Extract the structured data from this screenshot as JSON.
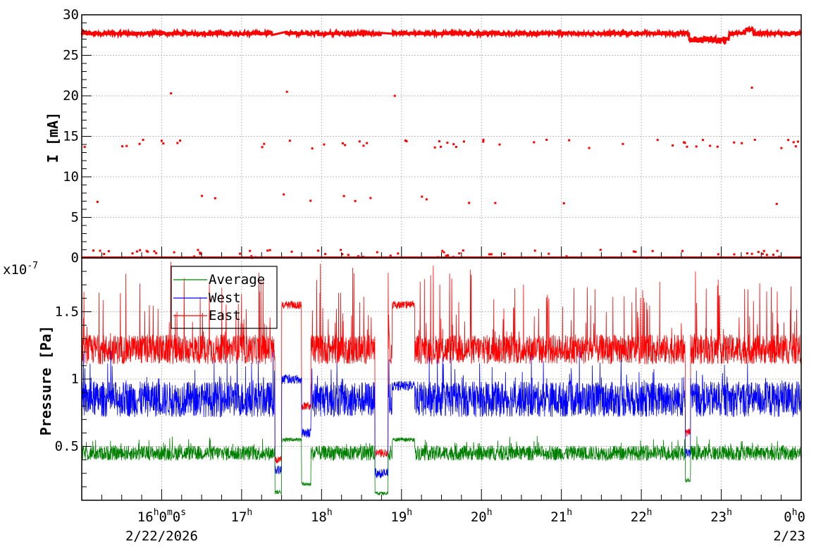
{
  "chart_data": [
    {
      "type": "scatter",
      "ylabel": "I [mA]",
      "ylim": [
        0,
        30
      ],
      "yticks": [
        0,
        5,
        10,
        15,
        20,
        25,
        30
      ],
      "ytick_labels": [
        "0",
        "5",
        "10",
        "15",
        "20",
        "25",
        "30"
      ],
      "grid": true,
      "x_range_hours": [
        "2026-02-22 15:00",
        "2026-02-23 00:00"
      ],
      "series": [
        {
          "color": "#ff0000",
          "main_level_mA": 27.7,
          "dropout_levels_mA": [
            14,
            0.5
          ],
          "gaps": [
            [
              "17:23",
              "17:33"
            ],
            [
              "18:45",
              "18:53"
            ]
          ],
          "notes": [
            {
              "time": "18:55",
              "value": 20
            },
            {
              "time": "23:23",
              "value": 21
            },
            {
              "time": "16:07",
              "value": 20.3
            },
            {
              "time": "17:34",
              "value": 20.5
            }
          ]
        }
      ]
    },
    {
      "type": "line",
      "ylabel": "Pressure [Pa]",
      "yscale_label": "x10",
      "yscale_exponent": "-7",
      "ylim": [
        0.1,
        1.9
      ],
      "yticks": [
        0.5,
        1.0,
        1.5
      ],
      "ytick_labels": [
        "0.5",
        "1",
        "1.5"
      ],
      "grid": true,
      "legend_position": "top-left",
      "xtick_labels": [
        {
          "main": "16",
          "sup": "h",
          "rest": "0",
          "rest_sup": "m",
          "rest2": "0",
          "rest2_sup": "s"
        },
        {
          "main": "17",
          "sup": "h"
        },
        {
          "main": "18",
          "sup": "h"
        },
        {
          "main": "19",
          "sup": "h"
        },
        {
          "main": "20",
          "sup": "h"
        },
        {
          "main": "21",
          "sup": "h"
        },
        {
          "main": "22",
          "sup": "h"
        },
        {
          "main": "23",
          "sup": "h"
        },
        {
          "main": "0",
          "sup": "h",
          "rest": "0"
        }
      ],
      "date_labels": [
        "2/22/2026",
        "2/23"
      ],
      "series": [
        {
          "name": "Average",
          "color": "#008000",
          "baseline": 0.45,
          "spread": 0.05
        },
        {
          "name": "West",
          "color": "#0000ff",
          "baseline": 0.85,
          "spread": 0.12
        },
        {
          "name": "East",
          "color": "#ff0000",
          "baseline": 1.22,
          "spread": 0.1
        }
      ],
      "events": [
        {
          "start": "17:25",
          "end": "17:30",
          "average": 0.16,
          "west": 0.32,
          "east": 0.4
        },
        {
          "start": "17:30",
          "end": "17:45",
          "average": 0.55,
          "west": 1.0,
          "east": 1.55
        },
        {
          "start": "17:45",
          "end": "17:52",
          "average": 0.22,
          "west": 0.6,
          "east": 0.8
        },
        {
          "start": "18:40",
          "end": "18:50",
          "average": 0.15,
          "west": 0.3,
          "east": 0.45
        },
        {
          "start": "18:53",
          "end": "19:10",
          "average": 0.55,
          "west": 0.95,
          "east": 1.55
        },
        {
          "start": "22:33",
          "end": "22:37",
          "average": 0.25,
          "west": 0.45,
          "east": 0.6
        }
      ]
    }
  ]
}
